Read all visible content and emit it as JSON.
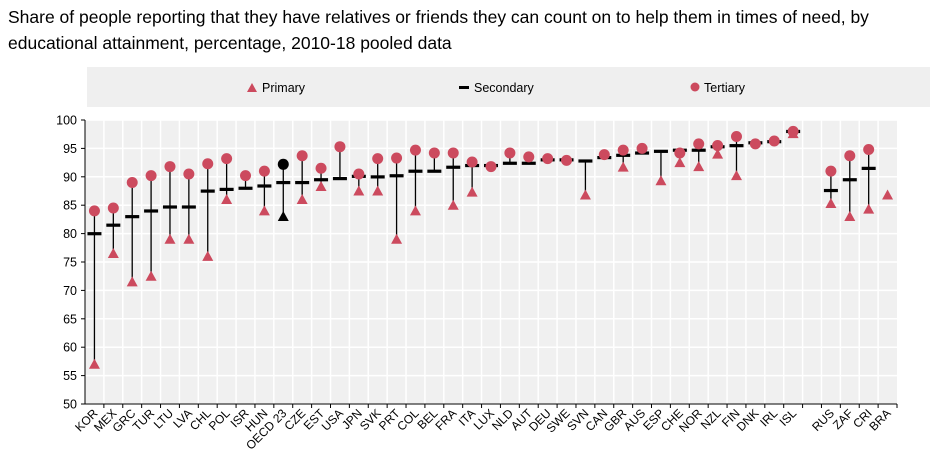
{
  "chart_data": {
    "type": "dot-range",
    "title": "Share of people reporting that they have relatives or friends they can count on to help them in times of need, by educational attainment, percentage, 2010-18 pooled data",
    "ylim": [
      50,
      100
    ],
    "yticks": [
      50,
      55,
      60,
      65,
      70,
      75,
      80,
      85,
      90,
      95,
      100
    ],
    "grid": true,
    "legend_position": "top",
    "colors": {
      "primary": "#cc4a5e",
      "secondary": "#000000",
      "tertiary": "#cc4a5e",
      "highlight": "#000000",
      "plot_bg": "#f0f0f0"
    },
    "series": [
      {
        "name": "Primary",
        "marker": "triangle"
      },
      {
        "name": "Secondary",
        "marker": "dash"
      },
      {
        "name": "Tertiary",
        "marker": "circle"
      }
    ],
    "highlight_category": "OECD 23",
    "categories": [
      "KOR",
      "MEX",
      "GRC",
      "TUR",
      "LTU",
      "LVA",
      "CHL",
      "POL",
      "ISR",
      "HUN",
      "OECD 23",
      "CZE",
      "EST",
      "USA",
      "JPN",
      "SVK",
      "PRT",
      "COL",
      "BEL",
      "FRA",
      "ITA",
      "LUX",
      "NLD",
      "AUT",
      "DEU",
      "SWE",
      "SVN",
      "CAN",
      "GBR",
      "AUS",
      "ESP",
      "CHE",
      "NOR",
      "NZL",
      "FIN",
      "DNK",
      "IRL",
      "ISL",
      "",
      "RUS",
      "ZAF",
      "CRI",
      "BRA"
    ],
    "primary": [
      57,
      76.5,
      71.5,
      72.5,
      79,
      79,
      76,
      86,
      null,
      84,
      83,
      86,
      88.3,
      null,
      87.5,
      87.5,
      79,
      84,
      null,
      85,
      87.3,
      null,
      null,
      null,
      null,
      null,
      86.8,
      null,
      91.7,
      null,
      89.3,
      92.5,
      91.8,
      94,
      90.2,
      null,
      null,
      97.6,
      null,
      85.3,
      83,
      84.3,
      86.8
    ],
    "secondary": [
      80,
      81.5,
      83,
      84,
      84.7,
      84.7,
      87.5,
      87.8,
      88,
      88.4,
      89,
      89,
      89.5,
      89.7,
      90.1,
      90,
      90.2,
      91,
      91,
      91.7,
      92,
      92,
      92.4,
      92.4,
      93,
      93,
      92.8,
      93.4,
      93.8,
      94.2,
      94.5,
      94.7,
      94.7,
      95.3,
      95.5,
      96,
      96.2,
      98,
      null,
      87.6,
      89.5,
      91.5,
      null
    ],
    "tertiary": [
      84,
      84.5,
      89,
      90.2,
      91.8,
      90.5,
      92.3,
      93.2,
      90.2,
      91,
      92.2,
      93.7,
      91.5,
      95.3,
      90.5,
      93.2,
      93.3,
      94.7,
      94.2,
      94.2,
      92.6,
      91.8,
      94.2,
      93.5,
      93.2,
      92.9,
      null,
      93.9,
      94.7,
      95,
      null,
      94.2,
      95.8,
      95.5,
      97.1,
      95.8,
      96.3,
      98,
      null,
      91,
      93.7,
      94.8,
      null
    ]
  }
}
